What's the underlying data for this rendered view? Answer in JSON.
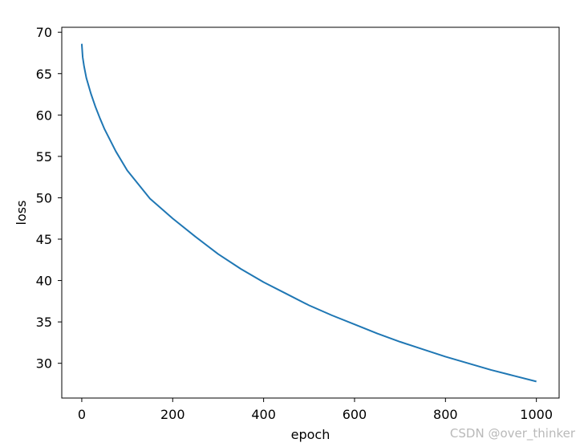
{
  "chart_data": {
    "type": "line",
    "title": "",
    "xlabel": "epoch",
    "ylabel": "loss",
    "xlim": [
      -44,
      1050
    ],
    "ylim": [
      25.8,
      70.6
    ],
    "xticks": [
      0,
      200,
      400,
      600,
      800,
      1000
    ],
    "yticks": [
      30,
      35,
      40,
      45,
      50,
      55,
      60,
      65,
      70
    ],
    "grid": false,
    "legend": "none",
    "line_color": "#1f77b4",
    "series": [
      {
        "x": [
          0,
          2,
          5,
          10,
          20,
          30,
          40,
          50,
          75,
          100,
          150,
          200,
          250,
          300,
          350,
          400,
          450,
          500,
          550,
          600,
          650,
          700,
          750,
          800,
          850,
          900,
          950,
          1000
        ],
        "values": [
          68.6,
          67.0,
          65.9,
          64.5,
          62.6,
          61.0,
          59.6,
          58.3,
          55.6,
          53.3,
          49.9,
          47.5,
          45.3,
          43.2,
          41.4,
          39.8,
          38.4,
          37.0,
          35.8,
          34.7,
          33.6,
          32.6,
          31.7,
          30.8,
          30.0,
          29.2,
          28.5,
          27.8
        ]
      }
    ]
  },
  "watermark": "CSDN @over_thinker"
}
